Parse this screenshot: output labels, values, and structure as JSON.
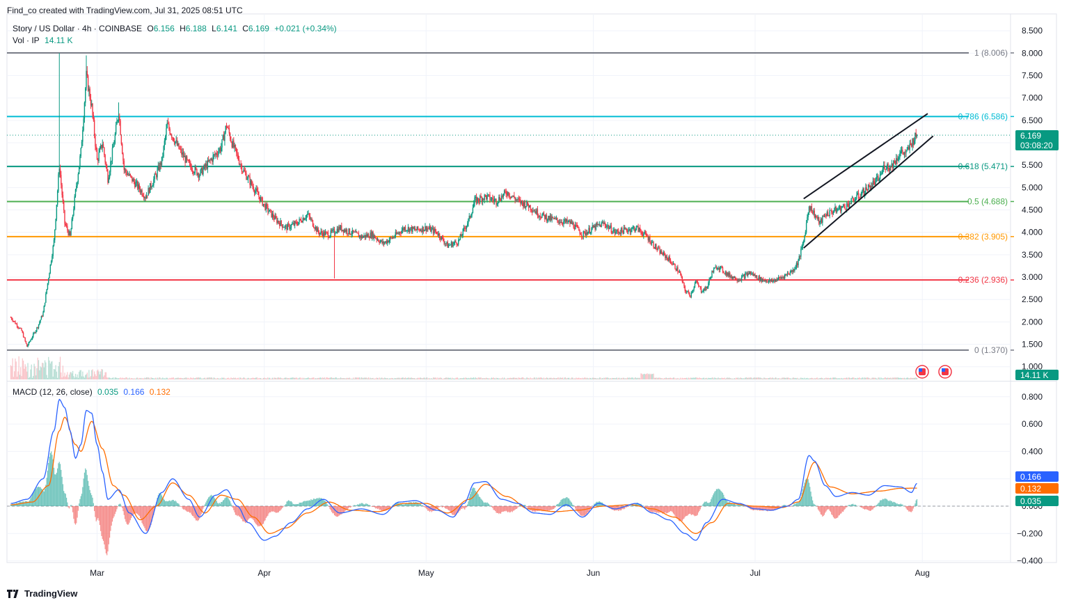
{
  "watermark": "Find_co created with TradingView.com, Jul 31, 2025 08:51 UTC",
  "header": {
    "symbol": "Story / US Dollar · 4h · COINBASE",
    "o_label": "O",
    "o_value": "6.156",
    "h_label": "H",
    "h_value": "6.188",
    "l_label": "L",
    "l_value": "6.141",
    "c_label": "C",
    "c_value": "6.169",
    "change": "+0.021 (+0.34%)",
    "vol_label": "Vol · IP",
    "vol_value": "14.11 K"
  },
  "macd_header": {
    "label": "MACD (12, 26, close)",
    "hist_value": "0.035",
    "macd_value": "0.166",
    "signal_value": "0.132"
  },
  "price_badge": {
    "price": "6.169",
    "countdown": "03:08:20"
  },
  "volume_badge": "14.11 K",
  "macd_badges": {
    "macd": "0.166",
    "signal": "0.132",
    "hist": "0.035"
  },
  "brand_text": "TradingView",
  "colors": {
    "up": "#089981",
    "down": "#f23645",
    "macd": "#2962ff",
    "signal": "#ff6d00",
    "fib0": "#787b86",
    "fib236": "#f23645",
    "fib382": "#ff9800",
    "fib5": "#4caf50",
    "fib618": "#089981",
    "fib786": "#00bcd4",
    "fib1": "#787b86"
  },
  "chart_data": [
    {
      "type": "candlestick",
      "title": "Story / US Dollar · 4h · COINBASE",
      "x_ticks": [
        "Mar",
        "Apr",
        "May",
        "Jun",
        "Jul",
        "Aug"
      ],
      "y_ticks": [
        "8.500",
        "8.000",
        "7.500",
        "7.000",
        "6.500",
        "6.000",
        "5.500",
        "5.000",
        "4.500",
        "4.000",
        "3.500",
        "3.000",
        "2.500",
        "2.000",
        "1.500",
        "1.000"
      ],
      "ylim": [
        1.0,
        8.6
      ],
      "last_price": 6.169,
      "fib_levels": [
        {
          "ratio": "0",
          "price": 1.37,
          "label": "0 (1.370)"
        },
        {
          "ratio": "0.236",
          "price": 2.936,
          "label": "0.236 (2.936)"
        },
        {
          "ratio": "0.382",
          "price": 3.905,
          "label": "0.382 (3.905)"
        },
        {
          "ratio": "0.5",
          "price": 4.688,
          "label": "0.5 (4.688)"
        },
        {
          "ratio": "0.618",
          "price": 5.471,
          "label": "0.618 (5.471)"
        },
        {
          "ratio": "0.786",
          "price": 6.586,
          "label": "0.786 (6.586)"
        },
        {
          "ratio": "1",
          "price": 8.006,
          "label": "1 (8.006)"
        }
      ],
      "channel": {
        "upper": [
          [
            "Jul 10",
            4.75
          ],
          [
            "Aug 2",
            6.65
          ]
        ],
        "lower": [
          [
            "Jul 10",
            3.65
          ],
          [
            "Aug 3",
            6.15
          ]
        ]
      },
      "path": [
        [
          "Feb 13",
          2.1
        ],
        [
          "Feb 15",
          1.8
        ],
        [
          "Feb 16",
          1.45
        ],
        [
          "Feb 18",
          1.9
        ],
        [
          "Feb 19",
          2.2
        ],
        [
          "Feb 20",
          3.0
        ],
        [
          "Feb 21",
          3.8
        ],
        [
          "Feb 22",
          5.5
        ],
        [
          "Feb 23",
          4.2
        ],
        [
          "Feb 24",
          3.9
        ],
        [
          "Feb 25",
          4.9
        ],
        [
          "Feb 26",
          5.8
        ],
        [
          "Feb 27",
          7.5
        ],
        [
          "Feb 28",
          6.8
        ],
        [
          "Mar 1",
          5.6
        ],
        [
          "Mar 2",
          6.0
        ],
        [
          "Mar 3",
          5.2
        ],
        [
          "Mar 4",
          5.9
        ],
        [
          "Mar 5",
          6.7
        ],
        [
          "Mar 6",
          5.4
        ],
        [
          "Mar 8",
          5.1
        ],
        [
          "Mar 10",
          4.8
        ],
        [
          "Mar 12",
          5.3
        ],
        [
          "Mar 13",
          5.6
        ],
        [
          "Mar 14",
          6.4
        ],
        [
          "Mar 16",
          5.9
        ],
        [
          "Mar 18",
          5.5
        ],
        [
          "Mar 20",
          5.3
        ],
        [
          "Mar 22",
          5.6
        ],
        [
          "Mar 24",
          5.9
        ],
        [
          "Mar 25",
          6.4
        ],
        [
          "Mar 26",
          6.0
        ],
        [
          "Mar 28",
          5.4
        ],
        [
          "Mar 30",
          5.0
        ],
        [
          "Apr 1",
          4.6
        ],
        [
          "Apr 3",
          4.3
        ],
        [
          "Apr 5",
          4.1
        ],
        [
          "Apr 7",
          4.2
        ],
        [
          "Apr 9",
          4.4
        ],
        [
          "Apr 11",
          4.0
        ],
        [
          "Apr 13",
          3.95
        ],
        [
          "Apr 15",
          4.1
        ],
        [
          "Apr 17",
          4.0
        ],
        [
          "Apr 19",
          3.9
        ],
        [
          "Apr 21",
          3.95
        ],
        [
          "Apr 23",
          3.75
        ],
        [
          "Apr 25",
          3.9
        ],
        [
          "Apr 27",
          4.1
        ],
        [
          "Apr 29",
          4.05
        ],
        [
          "May 1",
          4.1
        ],
        [
          "May 3",
          4.0
        ],
        [
          "May 5",
          3.7
        ],
        [
          "May 7",
          3.8
        ],
        [
          "May 9",
          4.3
        ],
        [
          "May 10",
          4.7
        ],
        [
          "May 12",
          4.8
        ],
        [
          "May 14",
          4.7
        ],
        [
          "May 16",
          4.9
        ],
        [
          "May 18",
          4.7
        ],
        [
          "May 20",
          4.6
        ],
        [
          "May 22",
          4.4
        ],
        [
          "May 24",
          4.3
        ],
        [
          "May 26",
          4.25
        ],
        [
          "May 28",
          4.2
        ],
        [
          "May 30",
          3.95
        ],
        [
          "Jun 1",
          4.1
        ],
        [
          "Jun 3",
          4.2
        ],
        [
          "Jun 5",
          4.0
        ],
        [
          "Jun 7",
          4.05
        ],
        [
          "Jun 9",
          4.1
        ],
        [
          "Jun 11",
          3.9
        ],
        [
          "Jun 13",
          3.6
        ],
        [
          "Jun 15",
          3.4
        ],
        [
          "Jun 17",
          3.1
        ],
        [
          "Jun 18",
          2.7
        ],
        [
          "Jun 19",
          2.6
        ],
        [
          "Jun 20",
          2.9
        ],
        [
          "Jun 21",
          2.7
        ],
        [
          "Jun 22",
          2.75
        ],
        [
          "Jun 23",
          3.1
        ],
        [
          "Jun 24",
          3.25
        ],
        [
          "Jun 26",
          3.05
        ],
        [
          "Jun 28",
          2.95
        ],
        [
          "Jun 30",
          3.1
        ],
        [
          "Jul 2",
          2.95
        ],
        [
          "Jul 4",
          2.9
        ],
        [
          "Jul 6",
          3.0
        ],
        [
          "Jul 8",
          3.15
        ],
        [
          "Jul 9",
          3.35
        ],
        [
          "Jul 10",
          3.8
        ],
        [
          "Jul 11",
          4.6
        ],
        [
          "Jul 12",
          4.4
        ],
        [
          "Jul 13",
          4.2
        ],
        [
          "Jul 14",
          4.4
        ],
        [
          "Jul 16",
          4.5
        ],
        [
          "Jul 18",
          4.6
        ],
        [
          "Jul 20",
          4.8
        ],
        [
          "Jul 22",
          5.0
        ],
        [
          "Jul 24",
          5.2
        ],
        [
          "Jul 25",
          5.5
        ],
        [
          "Jul 26",
          5.45
        ],
        [
          "Jul 27",
          5.6
        ],
        [
          "Jul 28",
          5.8
        ],
        [
          "Jul 29",
          5.75
        ],
        [
          "Jul 30",
          6.0
        ],
        [
          "Jul 31",
          6.169
        ]
      ]
    },
    {
      "type": "line",
      "title": "MACD (12, 26, close)",
      "y_ticks": [
        "0.800",
        "0.600",
        "0.400",
        "0.200",
        "0.000",
        "−0.200",
        "−0.400"
      ],
      "ylim": [
        -0.4,
        0.86
      ],
      "series": [
        {
          "name": "MACD",
          "values": [
            [
              "Feb 13",
              0.02
            ],
            [
              "Feb 16",
              0.05
            ],
            [
              "Feb 19",
              0.2
            ],
            [
              "Feb 21",
              0.55
            ],
            [
              "Feb 22",
              0.78
            ],
            [
              "Feb 23",
              0.72
            ],
            [
              "Feb 24",
              0.55
            ],
            [
              "Feb 25",
              0.35
            ],
            [
              "Feb 26",
              0.45
            ],
            [
              "Feb 27",
              0.7
            ],
            [
              "Feb 28",
              0.68
            ],
            [
              "Mar 1",
              0.45
            ],
            [
              "Mar 2",
              0.25
            ],
            [
              "Mar 3",
              0.05
            ],
            [
              "Mar 5",
              0.12
            ],
            [
              "Mar 7",
              -0.05
            ],
            [
              "Mar 10",
              -0.2
            ],
            [
              "Mar 13",
              0.1
            ],
            [
              "Mar 15",
              0.2
            ],
            [
              "Mar 18",
              0.05
            ],
            [
              "Mar 20",
              -0.08
            ],
            [
              "Mar 23",
              0.08
            ],
            [
              "Mar 25",
              0.12
            ],
            [
              "Mar 27",
              0.0
            ],
            [
              "Mar 29",
              -0.12
            ],
            [
              "Apr 1",
              -0.25
            ],
            [
              "Apr 3",
              -0.22
            ],
            [
              "Apr 6",
              -0.12
            ],
            [
              "Apr 9",
              -0.02
            ],
            [
              "Apr 12",
              0.05
            ],
            [
              "Apr 15",
              -0.05
            ],
            [
              "Apr 19",
              -0.02
            ],
            [
              "Apr 23",
              -0.06
            ],
            [
              "Apr 26",
              0.03
            ],
            [
              "Apr 29",
              0.04
            ],
            [
              "May 3",
              -0.03
            ],
            [
              "May 6",
              -0.08
            ],
            [
              "May 8",
              0.02
            ],
            [
              "May 10",
              0.17
            ],
            [
              "May 12",
              0.18
            ],
            [
              "May 15",
              0.05
            ],
            [
              "May 18",
              0.02
            ],
            [
              "May 21",
              -0.05
            ],
            [
              "May 24",
              -0.06
            ],
            [
              "May 27",
              0.01
            ],
            [
              "May 30",
              -0.08
            ],
            [
              "Jun 2",
              0.02
            ],
            [
              "Jun 5",
              -0.02
            ],
            [
              "Jun 9",
              0.02
            ],
            [
              "Jun 12",
              -0.05
            ],
            [
              "Jun 15",
              -0.1
            ],
            [
              "Jun 18",
              -0.2
            ],
            [
              "Jun 20",
              -0.25
            ],
            [
              "Jun 22",
              -0.12
            ],
            [
              "Jun 25",
              0.05
            ],
            [
              "Jun 28",
              0.02
            ],
            [
              "Jul 1",
              -0.02
            ],
            [
              "Jul 4",
              -0.03
            ],
            [
              "Jul 7",
              0.0
            ],
            [
              "Jul 9",
              0.05
            ],
            [
              "Jul 11",
              0.37
            ],
            [
              "Jul 12",
              0.33
            ],
            [
              "Jul 14",
              0.15
            ],
            [
              "Jul 16",
              0.07
            ],
            [
              "Jul 19",
              0.1
            ],
            [
              "Jul 22",
              0.08
            ],
            [
              "Jul 25",
              0.15
            ],
            [
              "Jul 28",
              0.14
            ],
            [
              "Jul 30",
              0.1
            ],
            [
              "Jul 31",
              0.166
            ]
          ]
        },
        {
          "name": "Signal",
          "values": [
            [
              "Feb 13",
              0.01
            ],
            [
              "Feb 17",
              0.03
            ],
            [
              "Feb 20",
              0.15
            ],
            [
              "Feb 22",
              0.55
            ],
            [
              "Feb 23",
              0.65
            ],
            [
              "Feb 25",
              0.45
            ],
            [
              "Feb 26",
              0.4
            ],
            [
              "Feb 28",
              0.62
            ],
            [
              "Mar 2",
              0.42
            ],
            [
              "Mar 4",
              0.15
            ],
            [
              "Mar 6",
              0.08
            ],
            [
              "Mar 9",
              -0.1
            ],
            [
              "Mar 12",
              0.0
            ],
            [
              "Mar 15",
              0.17
            ],
            [
              "Mar 18",
              0.08
            ],
            [
              "Mar 21",
              -0.05
            ],
            [
              "Mar 24",
              0.08
            ],
            [
              "Mar 27",
              0.05
            ],
            [
              "Mar 30",
              -0.08
            ],
            [
              "Apr 2",
              -0.2
            ],
            [
              "Apr 5",
              -0.16
            ],
            [
              "Apr 9",
              -0.05
            ],
            [
              "Apr 13",
              0.03
            ],
            [
              "Apr 17",
              -0.03
            ],
            [
              "Apr 22",
              -0.04
            ],
            [
              "Apr 27",
              0.02
            ],
            [
              "May 1",
              0.02
            ],
            [
              "May 5",
              -0.05
            ],
            [
              "May 9",
              0.05
            ],
            [
              "May 12",
              0.16
            ],
            [
              "May 16",
              0.07
            ],
            [
              "May 20",
              -0.02
            ],
            [
              "May 25",
              -0.04
            ],
            [
              "May 29",
              -0.03
            ],
            [
              "Jun 3",
              0.0
            ],
            [
              "Jun 8",
              0.01
            ],
            [
              "Jun 12",
              -0.02
            ],
            [
              "Jun 16",
              -0.08
            ],
            [
              "Jun 20",
              -0.2
            ],
            [
              "Jun 23",
              -0.12
            ],
            [
              "Jun 26",
              0.02
            ],
            [
              "Jul 1",
              0.0
            ],
            [
              "Jul 6",
              -0.01
            ],
            [
              "Jul 9",
              0.03
            ],
            [
              "Jul 12",
              0.32
            ],
            [
              "Jul 15",
              0.14
            ],
            [
              "Jul 19",
              0.09
            ],
            [
              "Jul 24",
              0.11
            ],
            [
              "Jul 28",
              0.13
            ],
            [
              "Jul 31",
              0.132
            ]
          ]
        }
      ]
    }
  ]
}
